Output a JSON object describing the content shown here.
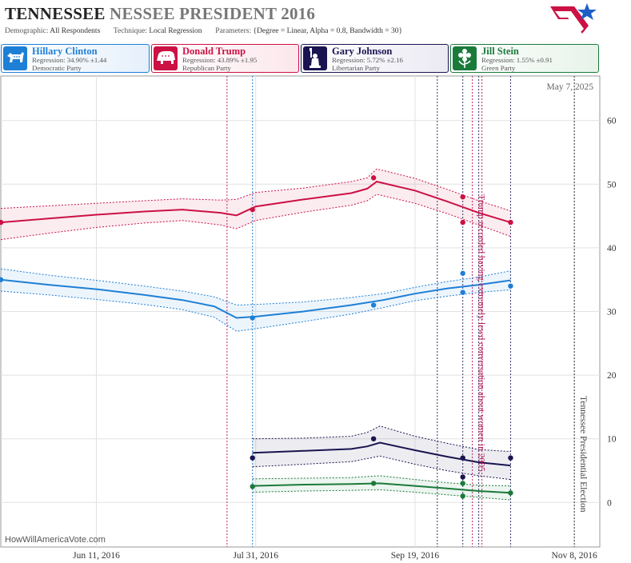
{
  "header": {
    "title_state": "TENNESSEE",
    "title_rest": "NESSEE PRESIDENT 2016",
    "demographic_label": "Demographic:",
    "demographic_value": "All Respondents",
    "technique_label": "Technique:",
    "technique_value": "Local Regression",
    "parameters_label": "Parameters:",
    "parameters_value": "{Degree = Linear, Alpha = 0.8, Bandwidth = 30}"
  },
  "candidates": [
    {
      "name": "Hillary Clinton",
      "regression": "Regression: 34.90% ±1.44",
      "party": "Democratic Party",
      "color": "#1e7fd6",
      "bg": "#e6f0fb",
      "icon": "donkey-icon"
    },
    {
      "name": "Donald Trump",
      "regression": "Regression: 43.89% ±1.95",
      "party": "Republican Party",
      "color": "#cc1144",
      "bg": "#fbe7ec",
      "icon": "elephant-icon"
    },
    {
      "name": "Gary Johnson",
      "regression": "Regression: 5.72% ±2.16",
      "party": "Libertarian Party",
      "color": "#1a1450",
      "bg": "#ebeaf3",
      "icon": "liberty-icon"
    },
    {
      "name": "Jill Stein",
      "regression": "Regression: 1.55% ±0.91",
      "party": "Green Party",
      "color": "#1a7a3a",
      "bg": "#e7f3ea",
      "icon": "flower-icon"
    }
  ],
  "footer": {
    "site": "HowWillAmericaVote.com"
  },
  "chart_data": {
    "type": "line",
    "current_date_label": "May 7, 2025",
    "x_axis": {
      "type": "date",
      "start": "2016-05-12",
      "end": "2016-11-16",
      "ticks": [
        {
          "date": "2016-06-11",
          "label": "Jun 11, 2016"
        },
        {
          "date": "2016-07-31",
          "label": "Jul 31, 2016"
        },
        {
          "date": "2016-09-19",
          "label": "Sep 19, 2016"
        },
        {
          "date": "2016-11-08",
          "label": "Nov 8, 2016"
        }
      ]
    },
    "y_axis": {
      "range": [
        -7,
        67
      ],
      "ticks": [
        0,
        10,
        20,
        30,
        40,
        50,
        60
      ],
      "gridlines": true,
      "position": "right"
    },
    "series": [
      {
        "name": "Hillary Clinton",
        "color": "#1e7fd6",
        "line": [
          [
            "2016-05-12",
            35.0
          ],
          [
            "2016-05-27",
            34.2
          ],
          [
            "2016-06-11",
            33.5
          ],
          [
            "2016-06-26",
            32.6
          ],
          [
            "2016-07-08",
            31.8
          ],
          [
            "2016-07-18",
            30.8
          ],
          [
            "2016-07-25",
            29.0
          ],
          [
            "2016-07-31",
            29.2
          ],
          [
            "2016-08-15",
            30.0
          ],
          [
            "2016-08-30",
            31.0
          ],
          [
            "2016-09-09",
            31.8
          ],
          [
            "2016-09-19",
            32.8
          ],
          [
            "2016-09-29",
            33.6
          ],
          [
            "2016-10-09",
            34.2
          ],
          [
            "2016-10-19",
            34.9
          ]
        ],
        "upper": [
          [
            "2016-05-12",
            36.7
          ],
          [
            "2016-05-27",
            35.7
          ],
          [
            "2016-06-11",
            34.9
          ],
          [
            "2016-06-26",
            34.0
          ],
          [
            "2016-07-08",
            33.2
          ],
          [
            "2016-07-18",
            32.3
          ],
          [
            "2016-07-25",
            31.0
          ],
          [
            "2016-07-31",
            31.1
          ],
          [
            "2016-08-15",
            31.5
          ],
          [
            "2016-08-30",
            32.2
          ],
          [
            "2016-09-09",
            32.8
          ],
          [
            "2016-09-19",
            33.8
          ],
          [
            "2016-09-29",
            34.7
          ],
          [
            "2016-10-09",
            35.4
          ],
          [
            "2016-10-19",
            36.4
          ]
        ],
        "lower": [
          [
            "2016-05-12",
            33.2
          ],
          [
            "2016-05-27",
            32.6
          ],
          [
            "2016-06-11",
            31.9
          ],
          [
            "2016-06-26",
            31.1
          ],
          [
            "2016-07-08",
            30.3
          ],
          [
            "2016-07-18",
            29.1
          ],
          [
            "2016-07-25",
            26.9
          ],
          [
            "2016-07-31",
            27.3
          ],
          [
            "2016-08-15",
            28.4
          ],
          [
            "2016-08-30",
            29.6
          ],
          [
            "2016-09-09",
            30.6
          ],
          [
            "2016-09-19",
            31.7
          ],
          [
            "2016-09-29",
            32.4
          ],
          [
            "2016-10-09",
            33.0
          ],
          [
            "2016-10-19",
            33.4
          ]
        ],
        "points": [
          [
            "2016-05-12",
            35
          ],
          [
            "2016-07-30",
            29
          ],
          [
            "2016-09-06",
            31
          ],
          [
            "2016-10-04",
            36
          ],
          [
            "2016-10-04",
            33
          ],
          [
            "2016-10-19",
            34
          ]
        ]
      },
      {
        "name": "Donald Trump",
        "color": "#cc1144",
        "line": [
          [
            "2016-05-12",
            44.0
          ],
          [
            "2016-05-27",
            44.6
          ],
          [
            "2016-06-11",
            45.2
          ],
          [
            "2016-06-26",
            45.7
          ],
          [
            "2016-07-08",
            46.0
          ],
          [
            "2016-07-20",
            45.5
          ],
          [
            "2016-07-25",
            45.1
          ],
          [
            "2016-07-31",
            46.5
          ],
          [
            "2016-08-15",
            47.6
          ],
          [
            "2016-08-30",
            48.6
          ],
          [
            "2016-09-04",
            49.3
          ],
          [
            "2016-09-07",
            50.4
          ],
          [
            "2016-09-19",
            49.0
          ],
          [
            "2016-09-29",
            47.3
          ],
          [
            "2016-10-09",
            45.5
          ],
          [
            "2016-10-19",
            44.0
          ]
        ],
        "upper": [
          [
            "2016-05-12",
            46.2
          ],
          [
            "2016-05-27",
            46.6
          ],
          [
            "2016-06-11",
            47.0
          ],
          [
            "2016-06-26",
            47.4
          ],
          [
            "2016-07-08",
            47.7
          ],
          [
            "2016-07-20",
            47.5
          ],
          [
            "2016-07-25",
            47.6
          ],
          [
            "2016-07-31",
            48.7
          ],
          [
            "2016-08-15",
            49.4
          ],
          [
            "2016-08-30",
            50.4
          ],
          [
            "2016-09-04",
            51.0
          ],
          [
            "2016-09-07",
            52.4
          ],
          [
            "2016-09-19",
            50.9
          ],
          [
            "2016-09-29",
            49.2
          ],
          [
            "2016-10-09",
            47.4
          ],
          [
            "2016-10-19",
            45.8
          ]
        ],
        "lower": [
          [
            "2016-05-12",
            41.3
          ],
          [
            "2016-05-27",
            42.3
          ],
          [
            "2016-06-11",
            43.2
          ],
          [
            "2016-06-26",
            43.9
          ],
          [
            "2016-07-08",
            44.3
          ],
          [
            "2016-07-20",
            43.6
          ],
          [
            "2016-07-25",
            43.0
          ],
          [
            "2016-07-31",
            44.3
          ],
          [
            "2016-08-15",
            45.6
          ],
          [
            "2016-08-30",
            46.7
          ],
          [
            "2016-09-04",
            47.4
          ],
          [
            "2016-09-07",
            48.4
          ],
          [
            "2016-09-19",
            47.0
          ],
          [
            "2016-09-29",
            45.4
          ],
          [
            "2016-10-09",
            43.6
          ],
          [
            "2016-10-19",
            41.8
          ]
        ],
        "points": [
          [
            "2016-05-12",
            44
          ],
          [
            "2016-07-30",
            46
          ],
          [
            "2016-09-06",
            51
          ],
          [
            "2016-10-04",
            48
          ],
          [
            "2016-10-04",
            44
          ],
          [
            "2016-10-19",
            44
          ]
        ]
      },
      {
        "name": "Gary Johnson",
        "color": "#1a1450",
        "line": [
          [
            "2016-07-30",
            7.8
          ],
          [
            "2016-08-15",
            8.1
          ],
          [
            "2016-08-30",
            8.4
          ],
          [
            "2016-09-04",
            8.8
          ],
          [
            "2016-09-08",
            9.4
          ],
          [
            "2016-09-19",
            8.2
          ],
          [
            "2016-09-29",
            7.2
          ],
          [
            "2016-10-09",
            6.3
          ],
          [
            "2016-10-19",
            5.8
          ]
        ],
        "upper": [
          [
            "2016-07-30",
            10.0
          ],
          [
            "2016-08-15",
            10.1
          ],
          [
            "2016-08-30",
            10.4
          ],
          [
            "2016-09-04",
            11.0
          ],
          [
            "2016-09-08",
            12.0
          ],
          [
            "2016-09-19",
            10.4
          ],
          [
            "2016-09-29",
            9.3
          ],
          [
            "2016-10-09",
            8.3
          ],
          [
            "2016-10-19",
            8.0
          ]
        ],
        "lower": [
          [
            "2016-07-30",
            5.6
          ],
          [
            "2016-08-15",
            6.0
          ],
          [
            "2016-08-30",
            6.4
          ],
          [
            "2016-09-04",
            6.9
          ],
          [
            "2016-09-08",
            7.3
          ],
          [
            "2016-09-19",
            6.0
          ],
          [
            "2016-09-29",
            5.0
          ],
          [
            "2016-10-09",
            4.2
          ],
          [
            "2016-10-19",
            3.6
          ]
        ],
        "points": [
          [
            "2016-07-30",
            7
          ],
          [
            "2016-09-06",
            10
          ],
          [
            "2016-10-04",
            7
          ],
          [
            "2016-10-04",
            4
          ],
          [
            "2016-10-19",
            7
          ]
        ]
      },
      {
        "name": "Jill Stein",
        "color": "#1a7a3a",
        "line": [
          [
            "2016-07-30",
            2.6
          ],
          [
            "2016-08-15",
            2.8
          ],
          [
            "2016-08-30",
            2.9
          ],
          [
            "2016-09-08",
            3.0
          ],
          [
            "2016-09-19",
            2.6
          ],
          [
            "2016-09-29",
            2.2
          ],
          [
            "2016-10-09",
            1.8
          ],
          [
            "2016-10-19",
            1.5
          ]
        ],
        "upper": [
          [
            "2016-07-30",
            3.7
          ],
          [
            "2016-08-15",
            3.8
          ],
          [
            "2016-08-30",
            3.9
          ],
          [
            "2016-09-08",
            4.2
          ],
          [
            "2016-09-19",
            3.6
          ],
          [
            "2016-09-29",
            3.1
          ],
          [
            "2016-10-09",
            2.7
          ],
          [
            "2016-10-19",
            2.6
          ]
        ],
        "lower": [
          [
            "2016-07-30",
            1.6
          ],
          [
            "2016-08-15",
            1.8
          ],
          [
            "2016-08-30",
            1.9
          ],
          [
            "2016-09-08",
            2.0
          ],
          [
            "2016-09-19",
            1.6
          ],
          [
            "2016-09-29",
            1.2
          ],
          [
            "2016-10-09",
            0.8
          ],
          [
            "2016-10-19",
            0.4
          ]
        ],
        "points": [
          [
            "2016-07-30",
            2.5
          ],
          [
            "2016-09-06",
            3
          ],
          [
            "2016-10-04",
            3
          ],
          [
            "2016-10-04",
            1
          ],
          [
            "2016-10-19",
            1.5
          ]
        ]
      }
    ],
    "event_lines": [
      {
        "date": "2016-07-22",
        "color": "#c0206a"
      },
      {
        "date": "2016-07-30",
        "color": "#1e7fd6"
      },
      {
        "date": "2016-09-26",
        "color": "#333366"
      },
      {
        "date": "2016-10-04",
        "color": "#333366"
      },
      {
        "date": "2016-10-07",
        "color": "#c0206a"
      },
      {
        "date": "2016-10-09",
        "color": "#333366"
      },
      {
        "date": "2016-10-10",
        "color": "#c0206a"
      },
      {
        "date": "2016-10-19",
        "color": "#333366"
      },
      {
        "date": "2016-11-08",
        "color": "#333333"
      }
    ],
    "annotations": [
      {
        "date": "2016-10-08",
        "text": "Trump recorded having extremely lewd conversation about women in 2005.",
        "color": "#b0205a"
      },
      {
        "date": "2016-11-09",
        "text": "Tennessee Presidential Election",
        "color": "#444444"
      }
    ]
  }
}
